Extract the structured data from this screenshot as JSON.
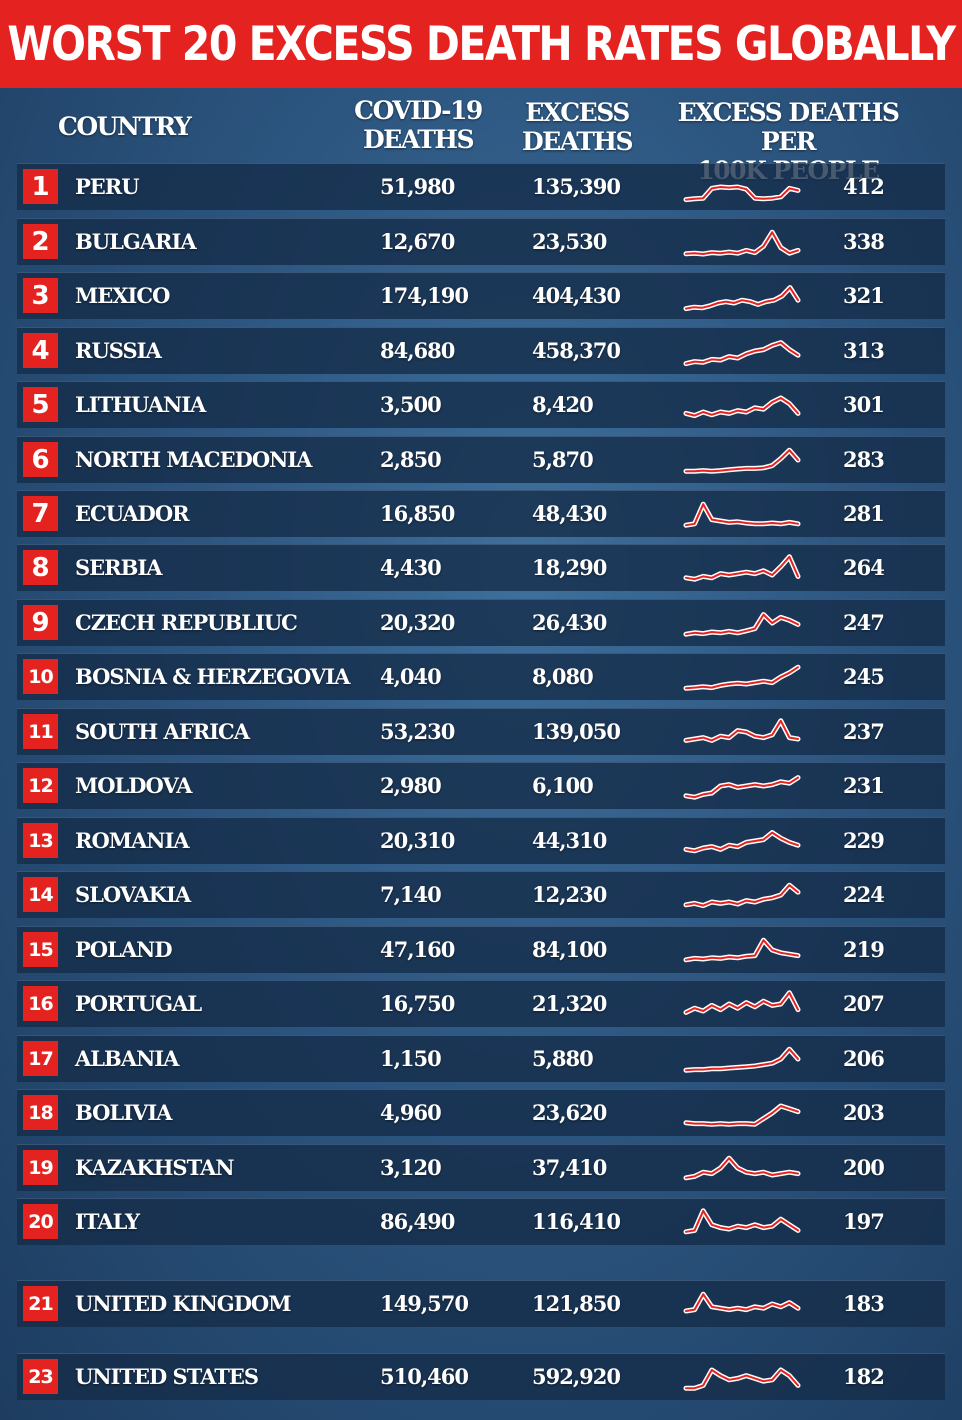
{
  "title": "WORST 20 EXCESS DEATH RATES GLOBALLY",
  "headers": {
    "country": "COUNTRY",
    "covid_line1": "COVID-19",
    "covid_line2": "DEATHS",
    "excess_line1": "EXCESS",
    "excess_line2": "DEATHS",
    "per100k_line1": "EXCESS DEATHS PER",
    "per100k_line2": "100K PEOPLE"
  },
  "colors": {
    "accent_red": "#e42320",
    "row_bg": "#152b48",
    "text": "#ffffff"
  },
  "chart_data": {
    "type": "table",
    "columns": [
      "",
      "COUNTRY",
      "COVID-19 DEATHS",
      "EXCESS DEATHS",
      "EXCESS DEATHS PER 100K PEOPLE"
    ],
    "rows": [
      {
        "rank": "1",
        "country": "PERU",
        "covid_deaths": "51,980",
        "excess_deaths": "135,390",
        "per_100k": "412",
        "trend": [
          0.05,
          0.08,
          0.1,
          0.45,
          0.5,
          0.48,
          0.5,
          0.42,
          0.1,
          0.08,
          0.1,
          0.15,
          0.45,
          0.38
        ]
      },
      {
        "rank": "2",
        "country": "BULGARIA",
        "covid_deaths": "12,670",
        "excess_deaths": "23,530",
        "per_100k": "338",
        "trend": [
          0.08,
          0.1,
          0.07,
          0.12,
          0.1,
          0.14,
          0.1,
          0.2,
          0.12,
          0.35,
          0.85,
          0.3,
          0.1,
          0.2
        ]
      },
      {
        "rank": "3",
        "country": "MEXICO",
        "covid_deaths": "174,190",
        "excess_deaths": "404,430",
        "per_100k": "321",
        "trend": [
          0.05,
          0.1,
          0.08,
          0.15,
          0.25,
          0.3,
          0.25,
          0.35,
          0.3,
          0.2,
          0.3,
          0.35,
          0.5,
          0.8,
          0.35
        ]
      },
      {
        "rank": "4",
        "country": "RUSSIA",
        "covid_deaths": "84,680",
        "excess_deaths": "458,370",
        "per_100k": "313",
        "trend": [
          0.05,
          0.12,
          0.1,
          0.2,
          0.18,
          0.3,
          0.25,
          0.4,
          0.5,
          0.55,
          0.7,
          0.8,
          0.55,
          0.35
        ]
      },
      {
        "rank": "5",
        "country": "LITHUANIA",
        "covid_deaths": "3,500",
        "excess_deaths": "8,420",
        "per_100k": "301",
        "trend": [
          0.2,
          0.12,
          0.25,
          0.15,
          0.25,
          0.2,
          0.3,
          0.25,
          0.4,
          0.35,
          0.6,
          0.75,
          0.55,
          0.2
        ]
      },
      {
        "rank": "6",
        "country": "NORTH MACEDONIA",
        "covid_deaths": "2,850",
        "excess_deaths": "5,870",
        "per_100k": "283",
        "trend": [
          0.1,
          0.1,
          0.12,
          0.1,
          0.12,
          0.15,
          0.18,
          0.2,
          0.2,
          0.22,
          0.3,
          0.55,
          0.85,
          0.5
        ]
      },
      {
        "rank": "7",
        "country": "ECUADOR",
        "covid_deaths": "16,850",
        "excess_deaths": "48,430",
        "per_100k": "281",
        "trend": [
          0.1,
          0.15,
          0.85,
          0.3,
          0.25,
          0.2,
          0.22,
          0.18,
          0.15,
          0.15,
          0.18,
          0.15,
          0.2,
          0.15
        ]
      },
      {
        "rank": "8",
        "country": "SERBIA",
        "covid_deaths": "4,430",
        "excess_deaths": "18,290",
        "per_100k": "264",
        "trend": [
          0.15,
          0.1,
          0.2,
          0.15,
          0.3,
          0.25,
          0.3,
          0.35,
          0.3,
          0.4,
          0.25,
          0.55,
          0.9,
          0.2
        ]
      },
      {
        "rank": "9",
        "country": "CZECH REPUBLIUC",
        "covid_deaths": "20,320",
        "excess_deaths": "26,430",
        "per_100k": "247",
        "trend": [
          0.1,
          0.15,
          0.12,
          0.18,
          0.15,
          0.2,
          0.15,
          0.22,
          0.3,
          0.8,
          0.5,
          0.7,
          0.6,
          0.45
        ]
      },
      {
        "rank": "10",
        "country": "BOSNIA & HERZEGOVIA",
        "covid_deaths": "4,040",
        "excess_deaths": "8,080",
        "per_100k": "245",
        "trend": [
          0.1,
          0.12,
          0.15,
          0.12,
          0.2,
          0.25,
          0.28,
          0.25,
          0.3,
          0.35,
          0.3,
          0.5,
          0.65,
          0.85
        ]
      },
      {
        "rank": "11",
        "country": "SOUTH AFRICA",
        "covid_deaths": "53,230",
        "excess_deaths": "139,050",
        "per_100k": "237",
        "trend": [
          0.2,
          0.25,
          0.3,
          0.2,
          0.35,
          0.3,
          0.55,
          0.5,
          0.35,
          0.3,
          0.4,
          0.9,
          0.3,
          0.25
        ]
      },
      {
        "rank": "12",
        "country": "MOLDOVA",
        "covid_deaths": "2,980",
        "excess_deaths": "6,100",
        "per_100k": "231",
        "trend": [
          0.15,
          0.1,
          0.2,
          0.25,
          0.5,
          0.55,
          0.45,
          0.5,
          0.55,
          0.5,
          0.55,
          0.65,
          0.6,
          0.8
        ]
      },
      {
        "rank": "13",
        "country": "ROMANIA",
        "covid_deaths": "20,310",
        "excess_deaths": "44,310",
        "per_100k": "229",
        "trend": [
          0.2,
          0.15,
          0.25,
          0.3,
          0.2,
          0.35,
          0.3,
          0.45,
          0.5,
          0.55,
          0.8,
          0.6,
          0.45,
          0.35
        ]
      },
      {
        "rank": "14",
        "country": "SLOVAKIA",
        "covid_deaths": "7,140",
        "excess_deaths": "12,230",
        "per_100k": "224",
        "trend": [
          0.15,
          0.2,
          0.12,
          0.25,
          0.2,
          0.25,
          0.18,
          0.3,
          0.25,
          0.35,
          0.4,
          0.5,
          0.85,
          0.6
        ]
      },
      {
        "rank": "15",
        "country": "POLAND",
        "covid_deaths": "47,160",
        "excess_deaths": "84,100",
        "per_100k": "219",
        "trend": [
          0.15,
          0.2,
          0.18,
          0.22,
          0.2,
          0.25,
          0.22,
          0.28,
          0.3,
          0.85,
          0.5,
          0.4,
          0.35,
          0.3
        ]
      },
      {
        "rank": "16",
        "country": "PORTUGAL",
        "covid_deaths": "16,750",
        "excess_deaths": "21,320",
        "per_100k": "207",
        "trend": [
          0.2,
          0.35,
          0.25,
          0.45,
          0.3,
          0.5,
          0.35,
          0.55,
          0.4,
          0.6,
          0.45,
          0.5,
          0.9,
          0.3
        ]
      },
      {
        "rank": "17",
        "country": "ALBANIA",
        "covid_deaths": "1,150",
        "excess_deaths": "5,880",
        "per_100k": "206",
        "trend": [
          0.1,
          0.12,
          0.12,
          0.15,
          0.15,
          0.18,
          0.2,
          0.22,
          0.25,
          0.3,
          0.35,
          0.5,
          0.85,
          0.5
        ]
      },
      {
        "rank": "18",
        "country": "BOLIVIA",
        "covid_deaths": "4,960",
        "excess_deaths": "23,620",
        "per_100k": "203",
        "trend": [
          0.15,
          0.12,
          0.12,
          0.1,
          0.12,
          0.1,
          0.12,
          0.12,
          0.1,
          0.3,
          0.5,
          0.75,
          0.65,
          0.55
        ]
      },
      {
        "rank": "19",
        "country": "KAZAKHSTAN",
        "covid_deaths": "3,120",
        "excess_deaths": "37,410",
        "per_100k": "200",
        "trend": [
          0.15,
          0.2,
          0.35,
          0.3,
          0.5,
          0.85,
          0.5,
          0.35,
          0.3,
          0.35,
          0.25,
          0.3,
          0.35,
          0.3
        ]
      },
      {
        "rank": "20",
        "country": "ITALY",
        "covid_deaths": "86,490",
        "excess_deaths": "116,410",
        "per_100k": "197",
        "trend": [
          0.15,
          0.2,
          0.9,
          0.4,
          0.3,
          0.25,
          0.35,
          0.3,
          0.4,
          0.3,
          0.35,
          0.6,
          0.4,
          0.2
        ]
      },
      {
        "rank": "21",
        "country": "UNITED KINGDOM",
        "covid_deaths": "149,570",
        "excess_deaths": "121,850",
        "per_100k": "183",
        "trend": [
          0.25,
          0.3,
          0.85,
          0.4,
          0.35,
          0.3,
          0.35,
          0.3,
          0.4,
          0.35,
          0.5,
          0.4,
          0.55,
          0.35
        ]
      },
      {
        "rank": "23",
        "country": "UNITED STATES",
        "covid_deaths": "510,460",
        "excess_deaths": "592,920",
        "per_100k": "182",
        "trend": [
          0.1,
          0.1,
          0.2,
          0.75,
          0.55,
          0.4,
          0.45,
          0.55,
          0.45,
          0.35,
          0.4,
          0.75,
          0.55,
          0.2
        ]
      }
    ]
  }
}
